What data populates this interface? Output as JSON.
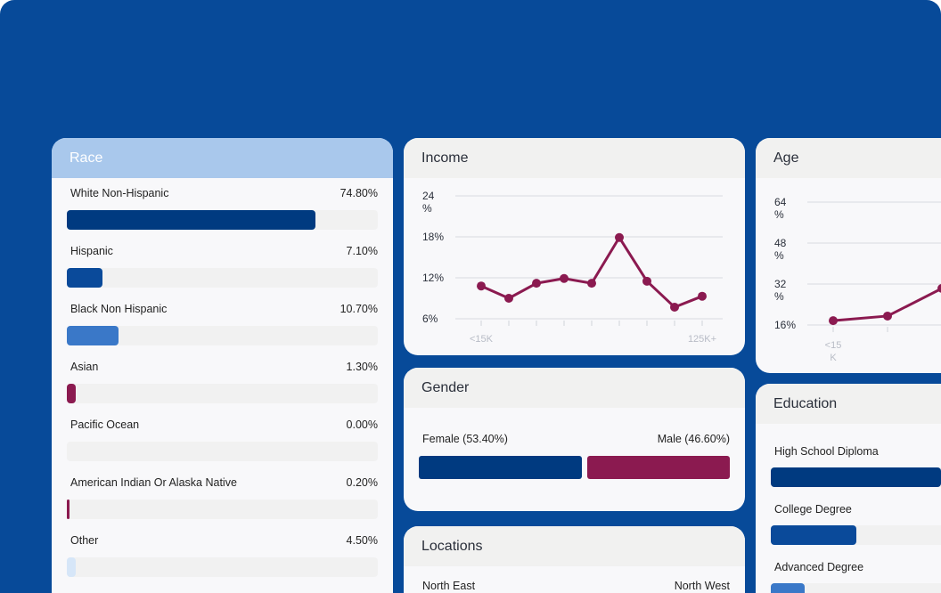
{
  "race": {
    "title": "Race",
    "items": [
      {
        "label": "White Non-Hispanic",
        "value": "74.80%",
        "fill": 0.8,
        "color": "#003a80"
      },
      {
        "label": "Hispanic",
        "value": "7.10%",
        "fill": 0.114,
        "color": "#0a4a9a"
      },
      {
        "label": "Black Non Hispanic",
        "value": "10.70%",
        "fill": 0.166,
        "color": "#3a78c8"
      },
      {
        "label": "Asian",
        "value": "1.30%",
        "fill": 0.03,
        "color": "#8b1a50"
      },
      {
        "label": "Pacific Ocean",
        "value": "0.00%",
        "fill": 0,
        "color": "#8b1a50"
      },
      {
        "label": "American Indian Or Alaska Native",
        "value": "0.20%",
        "fill": 0.01,
        "color": "#8b1a50"
      },
      {
        "label": "Other",
        "value": "4.50%",
        "fill": 0.03,
        "color": "#d6e6f8"
      }
    ]
  },
  "income": {
    "title": "Income",
    "chart_data": {
      "type": "line",
      "y_ticks": [
        "6%",
        "12%",
        "18%",
        "24\n%"
      ],
      "ylim": [
        6,
        24
      ],
      "x_first": "<15K",
      "x_last": "125K+",
      "values": [
        10.8,
        9.0,
        11.2,
        11.9,
        11.2,
        17.9,
        11.5,
        7.7,
        9.3
      ],
      "color": "#8b1a50"
    }
  },
  "gender": {
    "title": "Gender",
    "female": "Female (53.40%)",
    "male": "Male (46.60%)",
    "female_share": 0.534,
    "female_color": "#003a80",
    "male_color": "#8b1a50"
  },
  "locations": {
    "title": "Locations",
    "left": "North East",
    "right": "North West"
  },
  "age": {
    "title": "Age",
    "chart_data": {
      "type": "line",
      "y_ticks": [
        "16%",
        "32\n%",
        "48\n%",
        "64\n%"
      ],
      "ylim": [
        16,
        64
      ],
      "x_first": "<15\nK",
      "values": [
        17.7,
        19.5,
        30.3
      ],
      "color": "#8b1a50"
    }
  },
  "education": {
    "title": "Education",
    "items": [
      {
        "label": "High School Diploma",
        "fill": 1,
        "color": "#003a80"
      },
      {
        "label": "College Degree",
        "fill": 0.5,
        "color": "#0a4a9a"
      },
      {
        "label": "Advanced Degree",
        "fill": 0.2,
        "color": "#3a78c8"
      }
    ]
  }
}
